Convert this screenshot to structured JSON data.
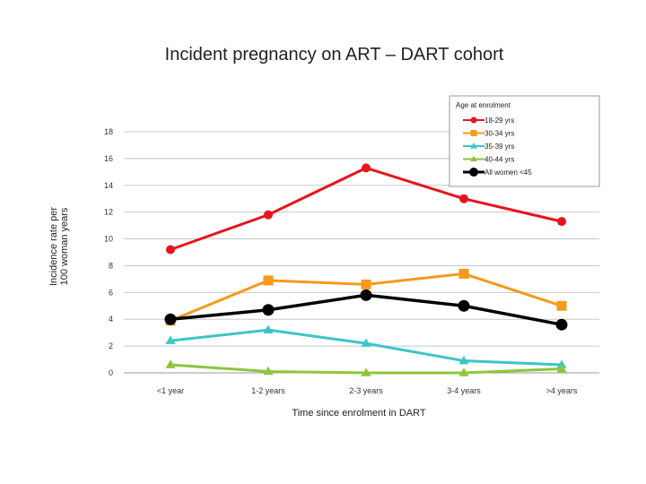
{
  "chart_data": {
    "type": "line",
    "title": "Incident pregnancy on ART – DART cohort",
    "xlabel": "Time since enrolment in DART",
    "ylabel": "Incidence rate per 100 woman years",
    "categories": [
      "<1 year",
      "1-2 years",
      "2-3 years",
      "3-4 years",
      ">4 years"
    ],
    "ylim": [
      0,
      18
    ],
    "yticks": [
      0,
      2,
      4,
      6,
      8,
      10,
      12,
      14,
      16,
      18
    ],
    "grid": "horizontal",
    "legend": {
      "title": "Age at enrolment",
      "placement": "top-right"
    },
    "series": [
      {
        "name": "18-29 yrs",
        "color": "#e8141c",
        "marker": "circle",
        "values": [
          9.2,
          11.8,
          15.3,
          13.0,
          11.3
        ]
      },
      {
        "name": "30-34 yrs",
        "color": "#f59a1b",
        "marker": "square",
        "values": [
          3.9,
          6.9,
          6.6,
          7.4,
          5.0
        ]
      },
      {
        "name": "35-39 yrs",
        "color": "#3cc6c8",
        "marker": "triangle",
        "values": [
          2.4,
          3.2,
          2.2,
          0.9,
          0.6
        ]
      },
      {
        "name": "40-44 yrs",
        "color": "#8cc63e",
        "marker": "triangle",
        "values": [
          0.6,
          0.1,
          0.0,
          0.0,
          0.3
        ]
      },
      {
        "name": "All women <45",
        "color": "#000000",
        "marker": "circle",
        "values": [
          4.0,
          4.7,
          5.8,
          5.0,
          3.6
        ]
      }
    ]
  }
}
